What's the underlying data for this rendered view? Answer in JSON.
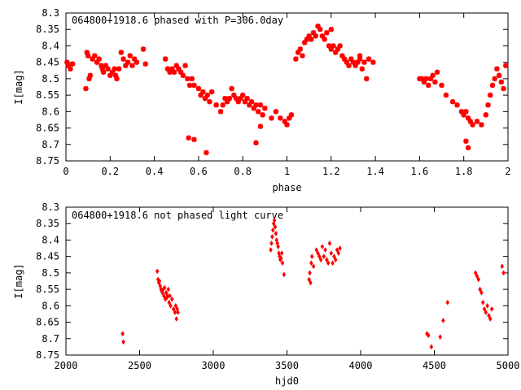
{
  "colors": {
    "points": "#ff0000",
    "axes": "#000000",
    "background": "#ffffff"
  },
  "chart_data": [
    {
      "type": "scatter",
      "title": "064800+1918.6 phased with P=306.0day",
      "xlabel": "phase",
      "ylabel": "I[mag]",
      "xlim": [
        0,
        2
      ],
      "ylim": [
        8.75,
        8.3
      ],
      "y_inverted": true,
      "grid": false,
      "marker": "star",
      "xticks": [
        0,
        0.2,
        0.4,
        0.6,
        0.8,
        1,
        1.2,
        1.4,
        1.6,
        1.8,
        2
      ],
      "xtick_labels": [
        "0",
        "0.2",
        "0.4",
        "0.6",
        "0.8",
        "1",
        "1.2",
        "1.4",
        "1.6",
        "1.8",
        "2"
      ],
      "yticks": [
        8.3,
        8.35,
        8.4,
        8.45,
        8.5,
        8.55,
        8.6,
        8.65,
        8.7,
        8.75
      ],
      "ytick_labels": [
        "8.3",
        "8.35",
        "8.4",
        "8.45",
        "8.5",
        "8.55",
        "8.6",
        "8.65",
        "8.7",
        "8.75"
      ],
      "series": [
        {
          "x": [
            0.005,
            0.01,
            0.02,
            0.03,
            0.09,
            0.095,
            0.1,
            0.105,
            0.11,
            0.12,
            0.13,
            0.14,
            0.15,
            0.16,
            0.165,
            0.17,
            0.18,
            0.19,
            0.2,
            0.21,
            0.22,
            0.225,
            0.23,
            0.24,
            0.25,
            0.26,
            0.27,
            0.28,
            0.29,
            0.3,
            0.31,
            0.32,
            0.35,
            0.36,
            0.45,
            0.46,
            0.47,
            0.48,
            0.49,
            0.5,
            0.51,
            0.52,
            0.53,
            0.54,
            0.55,
            0.56,
            0.57,
            0.58,
            0.6,
            0.61,
            0.62,
            0.63,
            0.64,
            0.65,
            0.66,
            0.68,
            0.7,
            0.71,
            0.72,
            0.73,
            0.74,
            0.75,
            0.76,
            0.77,
            0.78,
            0.79,
            0.8,
            0.81,
            0.82,
            0.83,
            0.84,
            0.85,
            0.86,
            0.87,
            0.88,
            0.89,
            0.9,
            0.93,
            0.95,
            0.97,
            0.99,
            1.0,
            1.01,
            1.02,
            0.555,
            0.58,
            0.635,
            0.86,
            0.88
          ],
          "y": [
            8.45,
            8.46,
            8.47,
            8.455,
            8.53,
            8.42,
            8.43,
            8.5,
            8.49,
            8.44,
            8.43,
            8.45,
            8.44,
            8.46,
            8.47,
            8.48,
            8.46,
            8.47,
            8.49,
            8.48,
            8.47,
            8.49,
            8.5,
            8.47,
            8.42,
            8.44,
            8.46,
            8.45,
            8.43,
            8.46,
            8.44,
            8.45,
            8.41,
            8.455,
            8.44,
            8.47,
            8.48,
            8.47,
            8.48,
            8.46,
            8.47,
            8.48,
            8.49,
            8.46,
            8.5,
            8.52,
            8.5,
            8.52,
            8.53,
            8.55,
            8.54,
            8.56,
            8.55,
            8.57,
            8.54,
            8.58,
            8.6,
            8.58,
            8.56,
            8.57,
            8.56,
            8.53,
            8.55,
            8.56,
            8.57,
            8.56,
            8.55,
            8.57,
            8.56,
            8.58,
            8.57,
            8.59,
            8.58,
            8.6,
            8.58,
            8.61,
            8.59,
            8.62,
            8.6,
            8.62,
            8.63,
            8.64,
            8.62,
            8.61,
            8.68,
            8.685,
            8.725,
            8.695,
            8.645
          ]
        },
        {
          "x": [
            1.04,
            1.05,
            1.06,
            1.07,
            1.08,
            1.09,
            1.1,
            1.11,
            1.12,
            1.13,
            1.14,
            1.15,
            1.16,
            1.17,
            1.18,
            1.19,
            1.2,
            1.21,
            1.22,
            1.23,
            1.24,
            1.25,
            1.26,
            1.27,
            1.28,
            1.29,
            1.3,
            1.31,
            1.32,
            1.33,
            1.34,
            1.35,
            1.37,
            1.39,
            1.6,
            1.61,
            1.62,
            1.63,
            1.64,
            1.65,
            1.66,
            1.67,
            1.68,
            1.7,
            1.72,
            1.75,
            1.77,
            1.79,
            1.8,
            1.81,
            1.82,
            1.83,
            1.84,
            1.86,
            1.88,
            1.9,
            1.91,
            1.92,
            1.93,
            1.94,
            1.95,
            1.96,
            1.97,
            1.98,
            1.99,
            1.2,
            1.33,
            1.36,
            1.81,
            1.82
          ],
          "y": [
            8.44,
            8.42,
            8.41,
            8.43,
            8.39,
            8.38,
            8.37,
            8.38,
            8.36,
            8.37,
            8.34,
            8.35,
            8.37,
            8.38,
            8.36,
            8.4,
            8.41,
            8.4,
            8.42,
            8.41,
            8.4,
            8.43,
            8.44,
            8.45,
            8.46,
            8.44,
            8.45,
            8.46,
            8.45,
            8.44,
            8.47,
            8.45,
            8.44,
            8.45,
            8.5,
            8.5,
            8.51,
            8.5,
            8.52,
            8.5,
            8.49,
            8.51,
            8.48,
            8.52,
            8.55,
            8.57,
            8.58,
            8.6,
            8.61,
            8.6,
            8.62,
            8.63,
            8.64,
            8.63,
            8.64,
            8.61,
            8.58,
            8.55,
            8.52,
            8.5,
            8.47,
            8.49,
            8.51,
            8.53,
            8.46,
            8.35,
            8.43,
            8.5,
            8.69,
            8.71
          ]
        }
      ]
    },
    {
      "type": "scatter",
      "title": "064800+1918.6 not phased light curve",
      "xlabel": "hjd0",
      "ylabel": "I[mag]",
      "xlim": [
        2000,
        5000
      ],
      "ylim": [
        8.75,
        8.3
      ],
      "y_inverted": true,
      "grid": false,
      "marker": "diamond",
      "xticks": [
        2000,
        2500,
        3000,
        3500,
        4000,
        4500,
        5000
      ],
      "xtick_labels": [
        "2000",
        "2500",
        "3000",
        "3500",
        "4000",
        "4500",
        "5000"
      ],
      "yticks": [
        8.3,
        8.35,
        8.4,
        8.45,
        8.5,
        8.55,
        8.6,
        8.65,
        8.7,
        8.75
      ],
      "ytick_labels": [
        "8.3",
        "8.35",
        "8.4",
        "8.45",
        "8.5",
        "8.55",
        "8.6",
        "8.65",
        "8.7",
        "8.75"
      ],
      "series": [
        {
          "x": [
            2385,
            2390,
            2620,
            2625,
            2630,
            2635,
            2640,
            2645,
            2650,
            2655,
            2660,
            2665,
            2670,
            2675,
            2680,
            2685,
            2690,
            2695,
            2700,
            2705,
            2710,
            2720,
            2730,
            2740,
            2745,
            2750,
            2755,
            2760,
            3390,
            3395,
            3400,
            3405,
            3410,
            3415,
            3420,
            3425,
            3430,
            3435,
            3440,
            3445,
            3450,
            3455,
            3460,
            3465,
            3470,
            3480,
            3650,
            3655,
            3660,
            3665,
            3670,
            3680,
            3700,
            3710,
            3720,
            3730,
            3740,
            3750,
            3760,
            3770,
            3780,
            3790,
            3800,
            3810,
            3820,
            3830,
            3840,
            3850,
            3860,
            4450,
            4460,
            4480,
            4540,
            4560,
            4590,
            4780,
            4790,
            4800,
            4810,
            4820,
            4830,
            4840,
            4850,
            4860,
            4870,
            4880,
            4890,
            4960,
            4970
          ],
          "y": [
            8.685,
            8.71,
            8.495,
            8.52,
            8.53,
            8.525,
            8.54,
            8.55,
            8.555,
            8.56,
            8.55,
            8.57,
            8.545,
            8.58,
            8.56,
            8.575,
            8.57,
            8.55,
            8.59,
            8.57,
            8.6,
            8.58,
            8.61,
            8.62,
            8.6,
            8.64,
            8.61,
            8.62,
            8.43,
            8.41,
            8.39,
            8.37,
            8.35,
            8.34,
            8.36,
            8.38,
            8.4,
            8.41,
            8.42,
            8.44,
            8.45,
            8.46,
            8.455,
            8.44,
            8.47,
            8.505,
            8.52,
            8.5,
            8.53,
            8.47,
            8.45,
            8.48,
            8.43,
            8.44,
            8.45,
            8.46,
            8.42,
            8.45,
            8.43,
            8.46,
            8.47,
            8.41,
            8.44,
            8.47,
            8.45,
            8.46,
            8.43,
            8.44,
            8.425,
            8.685,
            8.69,
            8.725,
            8.695,
            8.645,
            8.59,
            8.5,
            8.51,
            8.52,
            8.55,
            8.56,
            8.59,
            8.61,
            8.62,
            8.6,
            8.63,
            8.64,
            8.61,
            8.48,
            8.5
          ]
        }
      ]
    }
  ]
}
